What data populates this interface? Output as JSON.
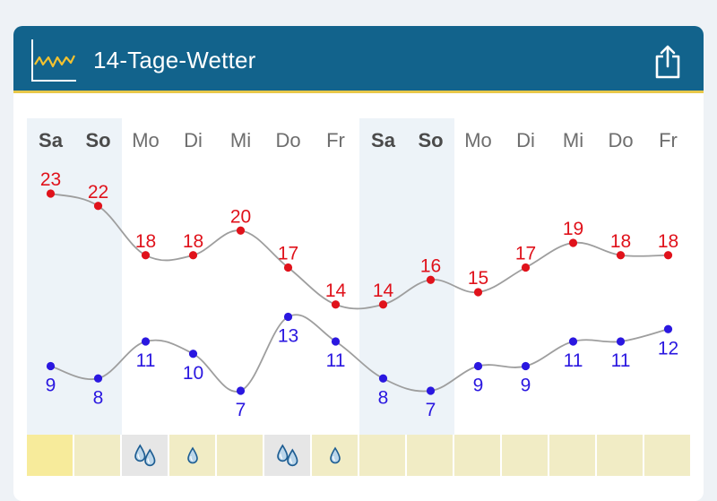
{
  "header": {
    "title": "14-Tage-Wetter",
    "logo_icon": "chart-line-icon",
    "share_icon": "share-icon",
    "background": "#12638c",
    "accent": "#e8c84a"
  },
  "days": [
    "Sa",
    "So",
    "Mo",
    "Di",
    "Mi",
    "Do",
    "Fr",
    "Sa",
    "So",
    "Mo",
    "Di",
    "Mi",
    "Do",
    "Fr"
  ],
  "weekend_days": [
    0,
    1,
    7,
    8
  ],
  "chart_data": {
    "type": "line",
    "categories": [
      "Sa",
      "So",
      "Mo",
      "Di",
      "Mi",
      "Do",
      "Fr",
      "Sa",
      "So",
      "Mo",
      "Di",
      "Mi",
      "Do",
      "Fr"
    ],
    "series": [
      {
        "values": [
          23,
          22,
          18,
          18,
          20,
          17,
          14,
          14,
          16,
          15,
          17,
          19,
          18,
          18
        ],
        "color": "#e0121b",
        "label_position": "above"
      },
      {
        "values": [
          9,
          8,
          11,
          10,
          7,
          13,
          11,
          8,
          7,
          9,
          9,
          11,
          11,
          12
        ],
        "color": "#2a17e0",
        "label_position": "below"
      }
    ],
    "ylim": [
      7,
      23
    ],
    "line_color": "#9e9e9e",
    "grid": false,
    "legend": "none"
  },
  "precipitation": [
    {
      "icon": "none"
    },
    {
      "icon": "none"
    },
    {
      "icon": "drops-two-icon"
    },
    {
      "icon": "drop-one-icon"
    },
    {
      "icon": "none"
    },
    {
      "icon": "drops-two-icon"
    },
    {
      "icon": "drop-one-icon"
    },
    {
      "icon": "none"
    },
    {
      "icon": "none"
    },
    {
      "icon": "none"
    },
    {
      "icon": "none"
    },
    {
      "icon": "none"
    },
    {
      "icon": "none"
    },
    {
      "icon": "none"
    }
  ]
}
